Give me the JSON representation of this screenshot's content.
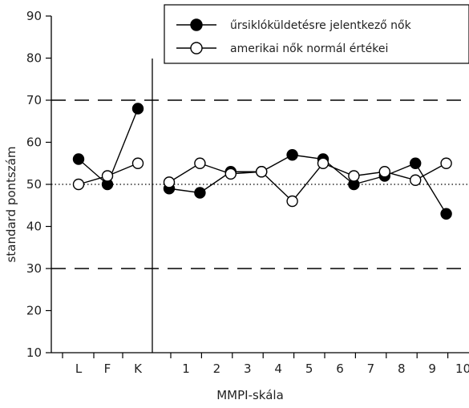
{
  "chart_data": {
    "type": "line",
    "title": "",
    "xlabel": "MMPI-skála",
    "ylabel": "standard pontszám",
    "ylim": [
      10,
      90
    ],
    "yticks": [
      10,
      20,
      30,
      40,
      50,
      60,
      70,
      80,
      90
    ],
    "x_tick_labels": [
      "L",
      "F",
      "K",
      "1",
      "2",
      "3",
      "4",
      "5",
      "6",
      "7",
      "8",
      "9",
      "10"
    ],
    "reference_lines": [
      {
        "y": 70,
        "style": "dashed"
      },
      {
        "y": 30,
        "style": "dashed"
      },
      {
        "y": 50,
        "style": "dotted"
      }
    ],
    "legend_position": "top-right",
    "grid": false,
    "series": [
      {
        "name": "űrsiklóküldetésre jelentkező nők",
        "marker": "filled-circle",
        "color": "#000000",
        "groups": [
          [
            {
              "x": "L",
              "y": 56
            },
            {
              "x": "F",
              "y": 50
            },
            {
              "x": "K",
              "y": 68
            }
          ],
          [
            {
              "x": 1,
              "y": 49
            },
            {
              "x": 2,
              "y": 48
            },
            {
              "x": 3,
              "y": 53
            },
            {
              "x": 4,
              "y": 53
            },
            {
              "x": 5,
              "y": 57
            },
            {
              "x": 6,
              "y": 56
            },
            {
              "x": 7,
              "y": 50
            },
            {
              "x": 8,
              "y": 52
            },
            {
              "x": 9,
              "y": 55
            },
            {
              "x": 10,
              "y": 43
            }
          ]
        ]
      },
      {
        "name": "amerikai nők normál értékei",
        "marker": "open-circle",
        "color": "#000000",
        "groups": [
          [
            {
              "x": "L",
              "y": 50
            },
            {
              "x": "F",
              "y": 52
            },
            {
              "x": "K",
              "y": 55
            }
          ],
          [
            {
              "x": 1,
              "y": 50.5
            },
            {
              "x": 2,
              "y": 55
            },
            {
              "x": 3,
              "y": 52.5
            },
            {
              "x": 4,
              "y": 53
            },
            {
              "x": 5,
              "y": 46
            },
            {
              "x": 6,
              "y": 55
            },
            {
              "x": 7,
              "y": 52
            },
            {
              "x": 8,
              "y": 53
            },
            {
              "x": 9,
              "y": 51
            },
            {
              "x": 10,
              "y": 55
            }
          ]
        ]
      }
    ]
  }
}
